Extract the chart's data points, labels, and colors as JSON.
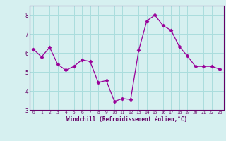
{
  "x": [
    0,
    1,
    2,
    3,
    4,
    5,
    6,
    7,
    8,
    9,
    10,
    11,
    12,
    13,
    14,
    15,
    16,
    17,
    18,
    19,
    20,
    21,
    22,
    23
  ],
  "y": [
    6.2,
    5.8,
    6.3,
    5.4,
    5.1,
    5.3,
    5.65,
    5.55,
    4.45,
    4.55,
    3.45,
    3.6,
    3.55,
    6.15,
    7.7,
    8.0,
    7.45,
    7.2,
    6.35,
    5.85,
    5.3,
    5.3,
    5.3,
    5.15
  ],
  "line_color": "#990099",
  "marker": "D",
  "marker_size": 2.5,
  "bg_color": "#d6f0f0",
  "grid_color": "#aadddd",
  "xlabel": "Windchill (Refroidissement éolien,°C)",
  "xlabel_color": "#660066",
  "tick_color": "#660066",
  "spine_color": "#660066",
  "ylim": [
    3,
    8.5
  ],
  "xlim": [
    -0.5,
    23.5
  ],
  "yticks": [
    3,
    4,
    5,
    6,
    7,
    8
  ],
  "xticks": [
    0,
    1,
    2,
    3,
    4,
    5,
    6,
    7,
    8,
    9,
    10,
    11,
    12,
    13,
    14,
    15,
    16,
    17,
    18,
    19,
    20,
    21,
    22,
    23
  ]
}
